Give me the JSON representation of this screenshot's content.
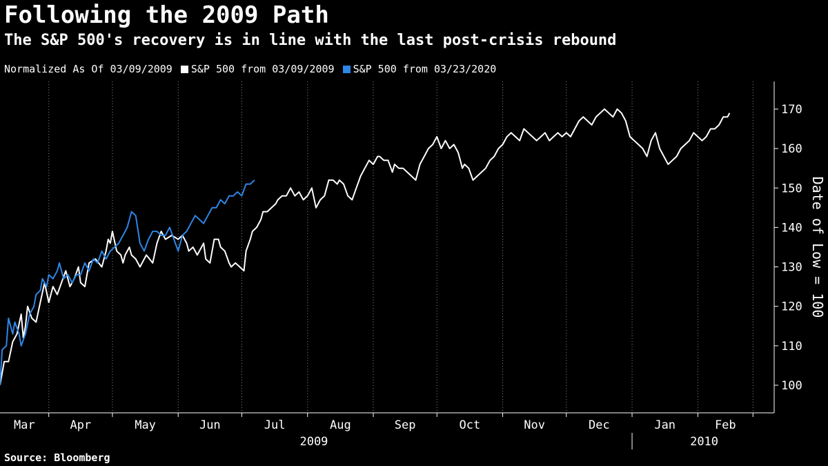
{
  "title": "Following the 2009 Path",
  "subtitle": "The S&P 500's recovery is in line with the last post-crisis rebound",
  "legend": {
    "prefix": "Normalized As Of 03/09/2009",
    "entries": [
      {
        "label": "S&P 500 from 03/09/2009",
        "color": "#ffffff"
      },
      {
        "label": "S&P 500 from 03/23/2020",
        "color": "#2f86e6"
      }
    ]
  },
  "source": "Source: Bloomberg",
  "chart_data": {
    "type": "line",
    "title": "Following the 2009 Path",
    "ylabel": "Date of Low = 100",
    "ylim": [
      93,
      177
    ],
    "yticks": [
      100,
      110,
      120,
      130,
      140,
      150,
      160,
      170
    ],
    "x_unit": "days since 03/09/2009",
    "xlim": [
      0,
      365
    ],
    "months": [
      {
        "label": "Mar",
        "day": 0
      },
      {
        "label": "Apr",
        "day": 23
      },
      {
        "label": "May",
        "day": 53
      },
      {
        "label": "Jun",
        "day": 84
      },
      {
        "label": "Jul",
        "day": 114
      },
      {
        "label": "Aug",
        "day": 145
      },
      {
        "label": "Sep",
        "day": 176
      },
      {
        "label": "Oct",
        "day": 206
      },
      {
        "label": "Nov",
        "day": 237
      },
      {
        "label": "Dec",
        "day": 267
      },
      {
        "label": "Jan",
        "day": 298
      },
      {
        "label": "Feb",
        "day": 329
      }
    ],
    "gridlines_x": [
      23,
      53,
      84,
      114,
      145,
      176,
      206,
      237,
      267,
      298,
      329,
      355
    ],
    "year_labels": [
      {
        "label": "2009",
        "day": 148
      },
      {
        "label": "2010",
        "day": 332
      }
    ],
    "year_divider_day": 298,
    "series": [
      {
        "name": "S&P 500 from 03/09/2009",
        "color": "#ffffff",
        "points": [
          [
            0,
            100
          ],
          [
            2,
            106
          ],
          [
            4,
            106
          ],
          [
            6,
            111
          ],
          [
            8,
            113
          ],
          [
            10,
            118
          ],
          [
            11,
            112
          ],
          [
            12,
            115
          ],
          [
            13,
            120
          ],
          [
            15,
            117
          ],
          [
            17,
            116
          ],
          [
            19,
            121
          ],
          [
            21,
            126
          ],
          [
            23,
            121
          ],
          [
            25,
            125
          ],
          [
            27,
            123
          ],
          [
            29,
            126
          ],
          [
            31,
            129
          ],
          [
            33,
            125
          ],
          [
            35,
            127
          ],
          [
            37,
            130
          ],
          [
            38,
            126
          ],
          [
            40,
            125
          ],
          [
            42,
            131
          ],
          [
            45,
            132
          ],
          [
            48,
            130
          ],
          [
            50,
            134
          ],
          [
            51,
            137
          ],
          [
            52,
            136
          ],
          [
            53,
            139
          ],
          [
            55,
            134
          ],
          [
            57,
            133
          ],
          [
            58,
            131
          ],
          [
            59,
            133
          ],
          [
            61,
            135
          ],
          [
            62,
            133
          ],
          [
            64,
            132
          ],
          [
            66,
            130
          ],
          [
            69,
            133
          ],
          [
            72,
            131
          ],
          [
            74,
            136
          ],
          [
            76,
            139
          ],
          [
            78,
            137
          ],
          [
            81,
            138
          ],
          [
            84,
            137
          ],
          [
            86,
            138
          ],
          [
            88,
            136
          ],
          [
            89,
            134
          ],
          [
            91,
            135
          ],
          [
            93,
            133
          ],
          [
            96,
            136
          ],
          [
            97,
            132
          ],
          [
            99,
            131
          ],
          [
            101,
            137
          ],
          [
            103,
            137
          ],
          [
            104,
            135
          ],
          [
            106,
            134
          ],
          [
            108,
            131
          ],
          [
            109,
            130
          ],
          [
            111,
            131
          ],
          [
            113,
            130
          ],
          [
            115,
            129
          ],
          [
            116,
            134
          ],
          [
            118,
            137
          ],
          [
            119,
            139
          ],
          [
            121,
            140
          ],
          [
            123,
            142
          ],
          [
            124,
            144
          ],
          [
            126,
            144
          ],
          [
            128,
            145
          ],
          [
            130,
            146
          ],
          [
            131,
            147
          ],
          [
            133,
            148
          ],
          [
            135,
            148
          ],
          [
            137,
            150
          ],
          [
            139,
            148
          ],
          [
            141,
            149
          ],
          [
            143,
            147
          ],
          [
            145,
            148
          ],
          [
            147,
            150
          ],
          [
            149,
            145
          ],
          [
            151,
            147
          ],
          [
            153,
            148
          ],
          [
            155,
            152
          ],
          [
            157,
            152
          ],
          [
            159,
            151
          ],
          [
            160,
            152
          ],
          [
            162,
            151
          ],
          [
            164,
            148
          ],
          [
            166,
            147
          ],
          [
            168,
            150
          ],
          [
            170,
            153
          ],
          [
            172,
            155
          ],
          [
            174,
            157
          ],
          [
            176,
            156
          ],
          [
            178,
            158
          ],
          [
            179,
            158
          ],
          [
            181,
            157
          ],
          [
            183,
            157
          ],
          [
            185,
            154
          ],
          [
            186,
            156
          ],
          [
            188,
            155
          ],
          [
            190,
            155
          ],
          [
            192,
            154
          ],
          [
            194,
            153
          ],
          [
            196,
            152
          ],
          [
            198,
            156
          ],
          [
            200,
            158
          ],
          [
            202,
            160
          ],
          [
            204,
            161
          ],
          [
            206,
            163
          ],
          [
            208,
            160
          ],
          [
            210,
            162
          ],
          [
            212,
            160
          ],
          [
            214,
            161
          ],
          [
            216,
            159
          ],
          [
            217,
            157
          ],
          [
            218,
            155
          ],
          [
            219,
            156
          ],
          [
            221,
            155
          ],
          [
            223,
            152
          ],
          [
            225,
            153
          ],
          [
            227,
            154
          ],
          [
            229,
            155
          ],
          [
            231,
            157
          ],
          [
            233,
            158
          ],
          [
            235,
            160
          ],
          [
            237,
            161
          ],
          [
            239,
            163
          ],
          [
            241,
            164
          ],
          [
            243,
            163
          ],
          [
            245,
            162
          ],
          [
            247,
            165
          ],
          [
            249,
            164
          ],
          [
            251,
            163
          ],
          [
            253,
            162
          ],
          [
            255,
            163
          ],
          [
            257,
            164
          ],
          [
            259,
            162
          ],
          [
            261,
            163
          ],
          [
            263,
            164
          ],
          [
            265,
            163
          ],
          [
            267,
            164
          ],
          [
            269,
            163
          ],
          [
            271,
            165
          ],
          [
            273,
            167
          ],
          [
            275,
            168
          ],
          [
            277,
            167
          ],
          [
            279,
            166
          ],
          [
            281,
            168
          ],
          [
            283,
            169
          ],
          [
            285,
            170
          ],
          [
            287,
            169
          ],
          [
            289,
            168
          ],
          [
            291,
            170
          ],
          [
            293,
            169
          ],
          [
            295,
            167
          ],
          [
            297,
            163
          ],
          [
            299,
            162
          ],
          [
            301,
            161
          ],
          [
            303,
            160
          ],
          [
            305,
            158
          ],
          [
            307,
            162
          ],
          [
            309,
            164
          ],
          [
            311,
            160
          ],
          [
            313,
            158
          ],
          [
            315,
            156
          ],
          [
            317,
            157
          ],
          [
            319,
            158
          ],
          [
            321,
            160
          ],
          [
            323,
            161
          ],
          [
            325,
            162
          ],
          [
            327,
            164
          ],
          [
            329,
            163
          ],
          [
            331,
            162
          ],
          [
            333,
            163
          ],
          [
            335,
            165
          ],
          [
            337,
            165
          ],
          [
            339,
            166
          ],
          [
            341,
            168
          ],
          [
            343,
            168
          ],
          [
            344,
            169
          ]
        ]
      },
      {
        "name": "S&P 500 from 03/23/2020",
        "color": "#2f86e6",
        "points": [
          [
            0,
            100
          ],
          [
            1,
            109
          ],
          [
            3,
            110
          ],
          [
            4,
            117
          ],
          [
            6,
            113
          ],
          [
            7,
            116
          ],
          [
            9,
            113
          ],
          [
            10,
            110
          ],
          [
            12,
            113
          ],
          [
            14,
            118
          ],
          [
            16,
            120
          ],
          [
            17,
            123
          ],
          [
            19,
            124
          ],
          [
            20,
            127
          ],
          [
            22,
            125
          ],
          [
            23,
            128
          ],
          [
            25,
            127
          ],
          [
            27,
            129
          ],
          [
            28,
            131
          ],
          [
            30,
            127
          ],
          [
            32,
            128
          ],
          [
            34,
            126
          ],
          [
            36,
            128
          ],
          [
            38,
            128
          ],
          [
            40,
            131
          ],
          [
            42,
            129
          ],
          [
            44,
            132
          ],
          [
            46,
            131
          ],
          [
            48,
            134
          ],
          [
            50,
            132
          ],
          [
            52,
            134
          ],
          [
            54,
            135
          ],
          [
            56,
            136
          ],
          [
            58,
            138
          ],
          [
            60,
            140
          ],
          [
            62,
            144
          ],
          [
            64,
            143
          ],
          [
            66,
            136
          ],
          [
            68,
            134
          ],
          [
            70,
            137
          ],
          [
            72,
            139
          ],
          [
            74,
            139
          ],
          [
            76,
            138
          ],
          [
            78,
            138
          ],
          [
            80,
            140
          ],
          [
            82,
            137
          ],
          [
            84,
            134
          ],
          [
            86,
            138
          ],
          [
            88,
            139
          ],
          [
            90,
            141
          ],
          [
            92,
            143
          ],
          [
            94,
            142
          ],
          [
            96,
            141
          ],
          [
            98,
            143
          ],
          [
            100,
            145
          ],
          [
            102,
            145
          ],
          [
            104,
            147
          ],
          [
            106,
            146
          ],
          [
            108,
            148
          ],
          [
            110,
            148
          ],
          [
            112,
            149
          ],
          [
            114,
            148
          ],
          [
            116,
            151
          ],
          [
            118,
            151
          ],
          [
            120,
            152
          ]
        ]
      }
    ]
  }
}
